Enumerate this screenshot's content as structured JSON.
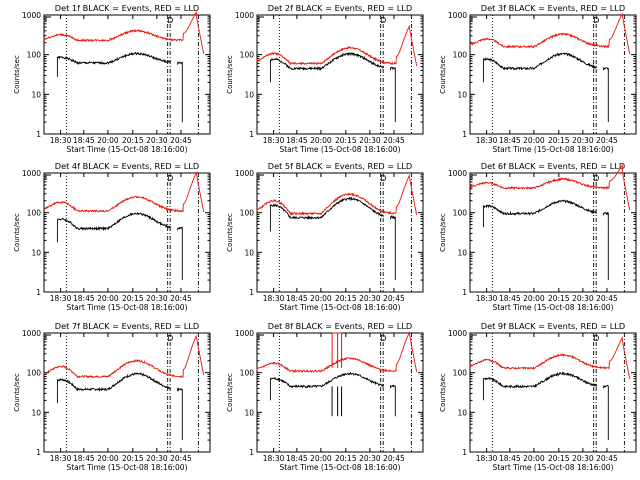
{
  "chart_data": [
    {
      "type": "line",
      "title": "Det 1f BLACK = Events, RED = LLD",
      "xlabel": "Start Time (15-Oct-08 18:16:00)",
      "ylabel": "Counts/sec",
      "yscale": "log",
      "ylim": [
        1,
        1000
      ],
      "xlim": [
        0,
        42
      ],
      "xticks": [
        "18:30",
        "18:45",
        "20:00",
        "20:15",
        "20:30",
        "20:45"
      ],
      "yticks": [
        "1",
        "10",
        "100",
        "1000"
      ],
      "flag_label": "D",
      "black_base": 62,
      "black_amp": 45,
      "red_base": 230,
      "red_amp": 170,
      "red_flare": 900,
      "drop_min": 2
    },
    {
      "type": "line",
      "title": "Det 2f BLACK = Events, RED = LLD",
      "xlabel": "Start Time (15-Oct-08 18:16:00)",
      "ylabel": "Counts/sec",
      "yscale": "log",
      "ylim": [
        1,
        1000
      ],
      "xlim": [
        0,
        42
      ],
      "xticks": [
        "18:30",
        "18:45",
        "20:00",
        "20:15",
        "20:30",
        "20:45"
      ],
      "yticks": [
        "1",
        "10",
        "100",
        "1000"
      ],
      "flag_label": "D",
      "black_base": 45,
      "black_amp": 60,
      "red_base": 60,
      "red_amp": 90,
      "red_flare": 450,
      "drop_min": 2
    },
    {
      "type": "line",
      "title": "Det 3f BLACK = Events, RED = LLD",
      "xlabel": "Start Time (15-Oct-08 18:16:00)",
      "ylabel": "Counts/sec",
      "yscale": "log",
      "ylim": [
        1,
        1000
      ],
      "xlim": [
        0,
        42
      ],
      "xticks": [
        "18:30",
        "18:45",
        "20:00",
        "20:15",
        "20:30",
        "20:45"
      ],
      "yticks": [
        "1",
        "10",
        "100",
        "1000"
      ],
      "flag_label": "D",
      "black_base": 45,
      "black_amp": 60,
      "red_base": 160,
      "red_amp": 170,
      "red_flare": 900,
      "drop_min": 2
    },
    {
      "type": "line",
      "title": "Det 4f BLACK = Events, RED = LLD",
      "xlabel": "Start Time (15-Oct-08 18:16:00)",
      "ylabel": "Counts/sec",
      "yscale": "log",
      "ylim": [
        1,
        1000
      ],
      "xlim": [
        0,
        42
      ],
      "xticks": [
        "18:30",
        "18:45",
        "20:00",
        "20:15",
        "20:30",
        "20:45"
      ],
      "yticks": [
        "1",
        "10",
        "100",
        "1000"
      ],
      "flag_label": "D",
      "black_base": 40,
      "black_amp": 55,
      "red_base": 110,
      "red_amp": 140,
      "red_flare": 900,
      "drop_min": 2
    },
    {
      "type": "line",
      "title": "Det 5f BLACK = Events, RED = LLD",
      "xlabel": "Start Time (15-Oct-08 18:16:00)",
      "ylabel": "Counts/sec",
      "yscale": "log",
      "ylim": [
        1,
        1000
      ],
      "xlim": [
        0,
        42
      ],
      "xticks": [
        "18:30",
        "18:45",
        "20:00",
        "20:15",
        "20:30",
        "20:45"
      ],
      "yticks": [
        "1",
        "10",
        "100",
        "1000"
      ],
      "flag_label": "D",
      "black_base": 75,
      "black_amp": 150,
      "red_base": 95,
      "red_amp": 200,
      "red_flare": 750,
      "drop_min": 2
    },
    {
      "type": "line",
      "title": "Det 6f BLACK = Events, RED = LLD",
      "xlabel": "Start Time (15-Oct-08 18:16:00)",
      "ylabel": "Counts/sec",
      "yscale": "log",
      "ylim": [
        1,
        1000
      ],
      "xlim": [
        0,
        42
      ],
      "xticks": [
        "18:30",
        "18:45",
        "20:00",
        "20:15",
        "20:30",
        "20:45"
      ],
      "yticks": [
        "1",
        "10",
        "100",
        "1000"
      ],
      "flag_label": "D",
      "black_base": 95,
      "black_amp": 100,
      "red_base": 420,
      "red_amp": 280,
      "red_flare": 1000,
      "drop_min": 2
    },
    {
      "type": "line",
      "title": "Det 7f BLACK = Events, RED = LLD",
      "xlabel": "Start Time (15-Oct-08 18:16:00)",
      "ylabel": "Counts/sec",
      "yscale": "log",
      "ylim": [
        1,
        1000
      ],
      "xlim": [
        0,
        42
      ],
      "xticks": [
        "18:30",
        "18:45",
        "20:00",
        "20:15",
        "20:30",
        "20:45"
      ],
      "yticks": [
        "1",
        "10",
        "100",
        "1000"
      ],
      "flag_label": "D",
      "black_base": 38,
      "black_amp": 55,
      "red_base": 80,
      "red_amp": 120,
      "red_flare": 750,
      "drop_min": 2
    },
    {
      "type": "line",
      "title": "Det 8f BLACK = Events, RED = LLD",
      "xlabel": "Start Time (15-Oct-08 18:16:00)",
      "ylabel": "Counts/sec",
      "yscale": "log",
      "ylim": [
        1,
        1000
      ],
      "xlim": [
        0,
        42
      ],
      "xticks": [
        "18:30",
        "18:45",
        "20:00",
        "20:15",
        "20:30",
        "20:45"
      ],
      "yticks": [
        "1",
        "10",
        "100",
        "1000"
      ],
      "flag_label": "D",
      "black_base": 45,
      "black_amp": 50,
      "red_base": 110,
      "red_amp": 120,
      "red_flare": 900,
      "drop_min": 8,
      "spikes": [
        19.0,
        20.4,
        21.4
      ]
    },
    {
      "type": "line",
      "title": "Det 9f BLACK = Events, RED = LLD",
      "xlabel": "Start Time (15-Oct-08 18:16:00)",
      "ylabel": "Counts/sec",
      "yscale": "log",
      "ylim": [
        1,
        1000
      ],
      "xlim": [
        0,
        42
      ],
      "xticks": [
        "18:30",
        "18:45",
        "20:00",
        "20:15",
        "20:30",
        "20:45"
      ],
      "yticks": [
        "1",
        "10",
        "100",
        "1000"
      ],
      "flag_label": "D",
      "black_base": 45,
      "black_amp": 50,
      "red_base": 130,
      "red_amp": 150,
      "red_flare": 600,
      "drop_min": 2
    }
  ],
  "colors": {
    "events": "#000000",
    "lld": "#e8150a",
    "axes": "#000000",
    "background": "#ffffff"
  }
}
